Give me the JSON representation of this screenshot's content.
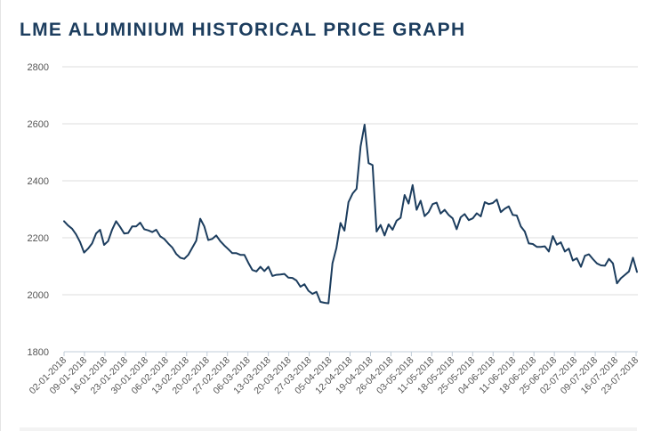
{
  "page": {
    "title": "LME ALUMINIUM HISTORICAL PRICE GRAPH"
  },
  "colors": {
    "title": "#1c3d5e",
    "line": "#1c3d5e",
    "grid": "#dcdcdc",
    "axis": "#c0ccd8",
    "tick_text": "#555555"
  },
  "chart_data": {
    "type": "line",
    "title": "LME ALUMINIUM HISTORICAL PRICE GRAPH",
    "xlabel": "",
    "ylabel": "",
    "ylim": [
      1800,
      2800
    ],
    "yticks": [
      1800,
      2000,
      2200,
      2400,
      2600,
      2800
    ],
    "grid": true,
    "legend": "none",
    "xtick_labels": [
      "02-01-2018",
      "09-01-2018",
      "16-01-2018",
      "23-01-2018",
      "30-01-2018",
      "06-02-2018",
      "13-02-2018",
      "20-02-2018",
      "27-02-2018",
      "06-03-2018",
      "13-03-2018",
      "20-03-2018",
      "27-03-2018",
      "05-04-2018",
      "12-04-2018",
      "19-04-2018",
      "26-04-2018",
      "03-05-2018",
      "11-05-2018",
      "18-05-2018",
      "25-05-2018",
      "04-06-2018",
      "11-06-2018",
      "18-06-2018",
      "25-06-2018",
      "02-07-2018",
      "09-07-2018",
      "16-07-2018",
      "23-07-2018"
    ],
    "series": [
      {
        "name": "LME Aluminium",
        "values": [
          2258,
          2243,
          2232,
          2212,
          2185,
          2148,
          2162,
          2180,
          2215,
          2228,
          2175,
          2188,
          2228,
          2258,
          2238,
          2215,
          2217,
          2240,
          2240,
          2253,
          2230,
          2226,
          2220,
          2228,
          2205,
          2196,
          2180,
          2166,
          2143,
          2130,
          2126,
          2140,
          2165,
          2190,
          2267,
          2240,
          2192,
          2196,
          2208,
          2188,
          2173,
          2160,
          2146,
          2146,
          2140,
          2140,
          2112,
          2087,
          2082,
          2098,
          2083,
          2098,
          2066,
          2070,
          2071,
          2073,
          2060,
          2059,
          2050,
          2028,
          2037,
          2014,
          2003,
          2010,
          1975,
          1972,
          1970,
          2110,
          2165,
          2252,
          2225,
          2325,
          2355,
          2372,
          2520,
          2597,
          2462,
          2455,
          2222,
          2245,
          2208,
          2247,
          2228,
          2260,
          2270,
          2350,
          2320,
          2385,
          2298,
          2330,
          2276,
          2290,
          2318,
          2323,
          2285,
          2298,
          2280,
          2268,
          2230,
          2272,
          2283,
          2262,
          2268,
          2286,
          2275,
          2325,
          2318,
          2322,
          2334,
          2290,
          2302,
          2310,
          2280,
          2278,
          2240,
          2222,
          2180,
          2178,
          2168,
          2168,
          2170,
          2152,
          2206,
          2176,
          2184,
          2152,
          2162,
          2120,
          2128,
          2098,
          2137,
          2142,
          2125,
          2110,
          2103,
          2102,
          2126,
          2110,
          2040,
          2058,
          2070,
          2082,
          2130,
          2080
        ]
      }
    ]
  }
}
